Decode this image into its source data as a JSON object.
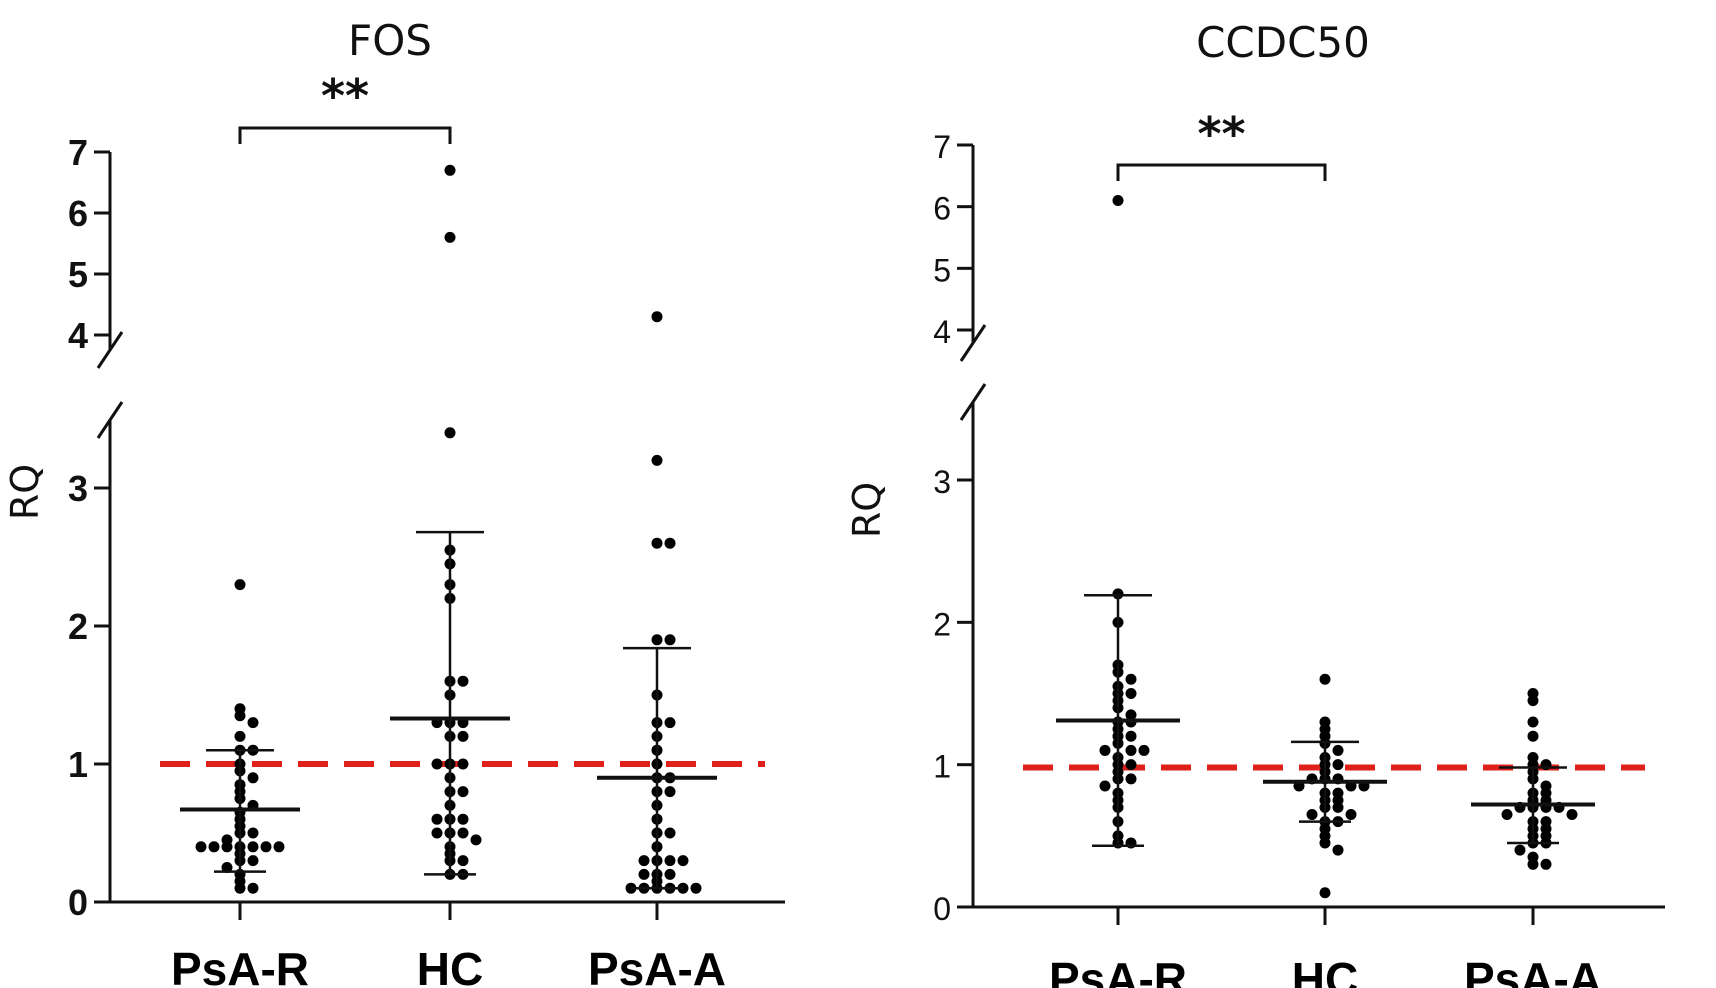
{
  "chart_data": [
    {
      "type": "scatter",
      "title": "FOS",
      "ylabel": "RQ",
      "categories": [
        "PsA-R",
        "HC",
        "PsA-A"
      ],
      "yticks": [
        "0",
        "1",
        "2",
        "3",
        "4",
        "5",
        "6",
        "7"
      ],
      "ylim": [
        0,
        7
      ],
      "axis_break": [
        3.6,
        3.9
      ],
      "reference_line": {
        "y": 1.0,
        "color": "#e0201b",
        "style": "dashed"
      },
      "significance": {
        "from": "PsA-R",
        "to": "HC",
        "label": "**"
      },
      "groups": [
        {
          "name": "PsA-R",
          "values": [
            2.3,
            1.4,
            1.35,
            1.3,
            1.2,
            1.1,
            1.1,
            1.0,
            0.95,
            0.9,
            0.85,
            0.8,
            0.75,
            0.7,
            0.65,
            0.6,
            0.55,
            0.5,
            0.5,
            0.45,
            0.4,
            0.4,
            0.4,
            0.4,
            0.4,
            0.4,
            0.4,
            0.35,
            0.3,
            0.3,
            0.25,
            0.2,
            0.15,
            0.1,
            0.1
          ],
          "mean": 0.67,
          "sd_low": 0.22,
          "sd_high": 1.1
        },
        {
          "name": "HC",
          "values": [
            6.7,
            5.6,
            3.4,
            2.55,
            2.45,
            2.3,
            2.2,
            1.6,
            1.6,
            1.5,
            1.3,
            1.3,
            1.3,
            1.2,
            1.2,
            1.0,
            1.0,
            1.0,
            0.9,
            0.8,
            0.8,
            0.7,
            0.6,
            0.6,
            0.6,
            0.5,
            0.5,
            0.5,
            0.45,
            0.4,
            0.35,
            0.3,
            0.3,
            0.2,
            0.2
          ],
          "mean": 1.33,
          "sd_low": 0.2,
          "sd_high": 2.68
        },
        {
          "name": "PsA-A",
          "values": [
            4.3,
            3.2,
            2.6,
            2.6,
            1.9,
            1.9,
            1.5,
            1.3,
            1.3,
            1.2,
            1.1,
            1.0,
            0.9,
            0.9,
            0.8,
            0.8,
            0.7,
            0.6,
            0.5,
            0.5,
            0.4,
            0.3,
            0.3,
            0.3,
            0.3,
            0.2,
            0.2,
            0.2,
            0.15,
            0.1,
            0.1,
            0.1,
            0.1,
            0.1,
            0.1
          ],
          "mean": 0.9,
          "sd_low": 0.1,
          "sd_high": 1.84
        }
      ]
    },
    {
      "type": "scatter",
      "title": "CCDC50",
      "ylabel": "RQ",
      "categories": [
        "PsA-R",
        "HC",
        "PsA-A"
      ],
      "yticks": [
        "0",
        "1",
        "2",
        "3",
        "4",
        "5",
        "6",
        "7"
      ],
      "ylim": [
        0,
        7
      ],
      "axis_break": [
        3.6,
        3.9
      ],
      "reference_line": {
        "y": 0.98,
        "color": "#e0201b",
        "style": "dashed"
      },
      "significance": {
        "from": "PsA-R",
        "to": "HC",
        "label": "**"
      },
      "groups": [
        {
          "name": "PsA-R",
          "values": [
            6.1,
            2.2,
            2.0,
            1.7,
            1.65,
            1.6,
            1.55,
            1.5,
            1.5,
            1.45,
            1.4,
            1.35,
            1.3,
            1.3,
            1.25,
            1.2,
            1.2,
            1.15,
            1.1,
            1.1,
            1.1,
            1.05,
            1.0,
            1.0,
            0.95,
            0.9,
            0.9,
            0.85,
            0.8,
            0.75,
            0.7,
            0.6,
            0.5,
            0.45,
            0.45
          ],
          "mean": 1.31,
          "sd_low": 0.43,
          "sd_high": 2.19
        },
        {
          "name": "HC",
          "values": [
            1.6,
            1.3,
            1.25,
            1.2,
            1.15,
            1.1,
            1.05,
            1.0,
            1.0,
            0.95,
            0.9,
            0.9,
            0.9,
            0.85,
            0.85,
            0.85,
            0.8,
            0.8,
            0.75,
            0.75,
            0.7,
            0.7,
            0.65,
            0.65,
            0.6,
            0.6,
            0.55,
            0.5,
            0.45,
            0.4,
            0.1
          ],
          "mean": 0.88,
          "sd_low": 0.6,
          "sd_high": 1.16
        },
        {
          "name": "PsA-A",
          "values": [
            1.5,
            1.45,
            1.3,
            1.2,
            1.05,
            1.0,
            1.0,
            0.95,
            0.9,
            0.85,
            0.8,
            0.8,
            0.75,
            0.75,
            0.7,
            0.7,
            0.7,
            0.7,
            0.65,
            0.65,
            0.6,
            0.6,
            0.55,
            0.55,
            0.5,
            0.5,
            0.45,
            0.45,
            0.4,
            0.35,
            0.3,
            0.3
          ],
          "mean": 0.72,
          "sd_low": 0.45,
          "sd_high": 0.98
        }
      ]
    }
  ]
}
